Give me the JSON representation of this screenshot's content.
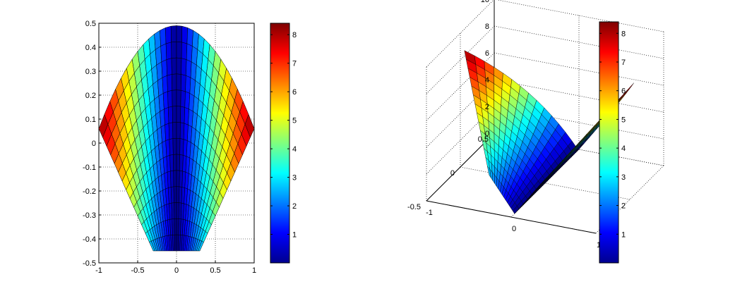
{
  "chart_data": [
    {
      "type": "surface-2d",
      "view": "top (x-y plane)",
      "xlim": [
        -1,
        1
      ],
      "ylim": [
        -0.5,
        0.5
      ],
      "x_ticks": [
        "-1",
        "-0.5",
        "0",
        "0.5",
        "1"
      ],
      "y_ticks": [
        "-0.5",
        "-0.4",
        "-0.3",
        "-0.2",
        "-0.1",
        "0",
        "0.1",
        "0.2",
        "0.3",
        "0.4",
        "0.5"
      ],
      "grid": true,
      "colormap": "jet",
      "clim": [
        0,
        8.4
      ],
      "surface": {
        "u_param": "t in [-1, 1]",
        "v_param": "s in [0, 1]",
        "x": "t * (1 - 0.7 s)",
        "y": "0.49 - 0.94 s - 0.43 t^2 (1 - s)",
        "color_value": "8.4 * |x| (approx.)",
        "grid_lines_u": 28,
        "grid_lines_v": 14
      },
      "colorbar": {
        "ticks": [
          "1",
          "2",
          "3",
          "4",
          "5",
          "6",
          "7",
          "8"
        ],
        "range": [
          0,
          8.4
        ]
      }
    },
    {
      "type": "surface-3d",
      "view": "perspective 3-D",
      "xlim": [
        -1,
        1
      ],
      "ylim": [
        -0.5,
        0.5
      ],
      "zlim": [
        0,
        10
      ],
      "x_ticks": [
        "-1",
        "0",
        "1"
      ],
      "y_ticks": [
        "-0.5",
        "0",
        "0.5"
      ],
      "z_ticks": [
        "0",
        "2",
        "4",
        "6",
        "8",
        "10"
      ],
      "grid": true,
      "colormap": "jet",
      "clim": [
        0,
        8.4
      ],
      "surface": {
        "description": "same surface, height z equals color value; two raised wings meeting at a low center",
        "z": "8.4 * |x| (approx.)"
      },
      "colorbar": {
        "ticks": [
          "1",
          "2",
          "3",
          "4",
          "5",
          "6",
          "7",
          "8"
        ],
        "range": [
          0,
          8.4
        ]
      }
    }
  ]
}
